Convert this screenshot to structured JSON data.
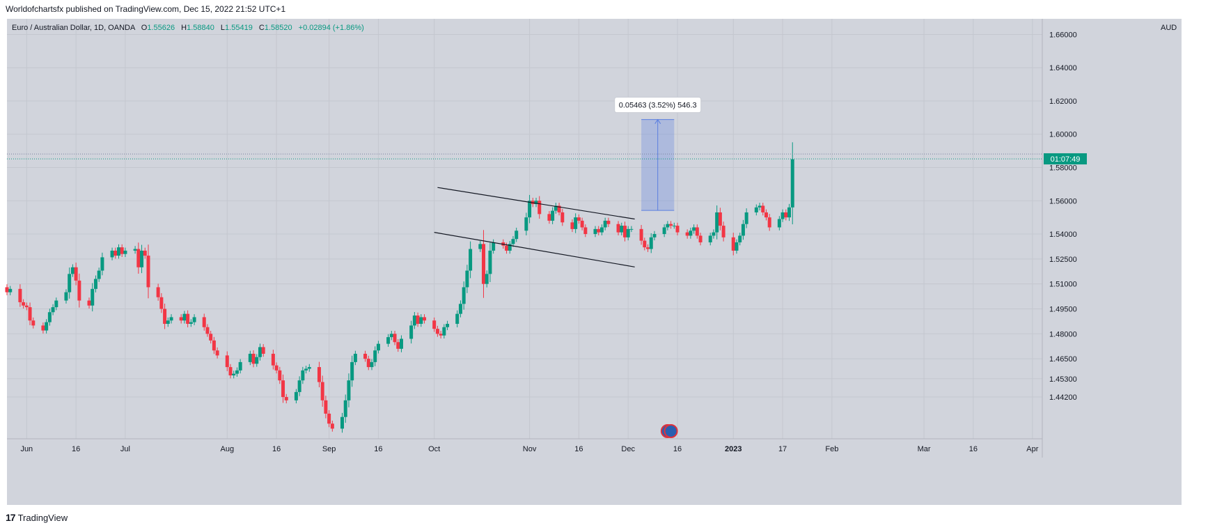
{
  "header": {
    "published_text": "Worldofchartsfx published on TradingView.com, Dec 15, 2022 21:52 UTC+1"
  },
  "legend": {
    "symbol": "Euro / Australian Dollar, 1D, OANDA",
    "open_label": "O",
    "open": "1.55626",
    "high_label": "H",
    "high": "1.58840",
    "low_label": "L",
    "low": "1.55419",
    "close_label": "C",
    "close": "1.58520",
    "change": "+0.02894 (+1.86%)"
  },
  "price_axis": {
    "currency": "AUD",
    "countdown": "01:07:49"
  },
  "footer": {
    "brand": "TradingView",
    "brand_icon": "tradingview-logo-icon"
  },
  "measure": {
    "label": "0.05463 (3.52%) 546.3"
  },
  "colors": {
    "up": "#089981",
    "down": "#f23645",
    "background": "#d1d4dc",
    "grid": "#c4c7cf",
    "measure": "#5b7fe0",
    "text": "#131722"
  },
  "chart_data": {
    "type": "candlestick",
    "title": "Euro / Australian Dollar, 1D, OANDA",
    "ylim": [
      1.4169,
      1.6694
    ],
    "y_ticks": [
      "1.66000",
      "1.64000",
      "1.62000",
      "1.60000",
      "1.58000",
      "1.56000",
      "1.54000",
      "1.52500",
      "1.51000",
      "1.49500",
      "1.48000",
      "1.46500",
      "1.45300",
      "1.44200"
    ],
    "x_ticks": [
      {
        "label": "Jun",
        "date": "2022-06-01"
      },
      {
        "label": "16",
        "date": "2022-06-16"
      },
      {
        "label": "Jul",
        "date": "2022-07-01"
      },
      {
        "label": "Aug",
        "date": "2022-08-01"
      },
      {
        "label": "16",
        "date": "2022-08-16"
      },
      {
        "label": "Sep",
        "date": "2022-09-01"
      },
      {
        "label": "16",
        "date": "2022-09-16"
      },
      {
        "label": "Oct",
        "date": "2022-10-03"
      },
      {
        "label": "Nov",
        "date": "2022-11-01"
      },
      {
        "label": "16",
        "date": "2022-11-16"
      },
      {
        "label": "Dec",
        "date": "2022-12-01"
      },
      {
        "label": "16",
        "date": "2022-12-16"
      },
      {
        "label": "2023",
        "date": "2023-01-02"
      },
      {
        "label": "17",
        "date": "2023-01-17"
      },
      {
        "label": "Feb",
        "date": "2023-02-01"
      },
      {
        "label": "Mar",
        "date": "2023-03-01"
      },
      {
        "label": "16",
        "date": "2023-03-16"
      },
      {
        "label": "Apr",
        "date": "2023-04-03"
      }
    ],
    "x_range": [
      "2022-05-26",
      "2023-04-06"
    ],
    "close_series": [
      1.505,
      1.507,
      1.499,
      1.497,
      1.496,
      1.488,
      1.485,
      1.482,
      1.487,
      1.493,
      1.496,
      1.5,
      1.505,
      1.516,
      1.52,
      1.512,
      1.5,
      1.497,
      1.507,
      1.513,
      1.518,
      1.526,
      1.53,
      1.527,
      1.532,
      1.528,
      1.53,
      1.531,
      1.52,
      1.53,
      1.527,
      1.508,
      1.502,
      1.495,
      1.486,
      1.488,
      1.49,
      1.488,
      1.492,
      1.486,
      1.487,
      1.49,
      1.484,
      1.48,
      1.476,
      1.47,
      1.467,
      1.46,
      1.455,
      1.456,
      1.458,
      1.463,
      1.468,
      1.462,
      1.466,
      1.472,
      1.468,
      1.461,
      1.458,
      1.452,
      1.442,
      1.44,
      1.445,
      1.452,
      1.458,
      1.459,
      1.46,
      1.451,
      1.44,
      1.432,
      1.426,
      1.423,
      1.43,
      1.44,
      1.452,
      1.463,
      1.468,
      1.465,
      1.46,
      1.463,
      1.47,
      1.474,
      1.478,
      1.48,
      1.475,
      1.471,
      1.477,
      1.485,
      1.491,
      1.486,
      1.49,
      1.488,
      1.483,
      1.48,
      1.479,
      1.484,
      1.486,
      1.492,
      1.498,
      1.508,
      1.518,
      1.531,
      1.534,
      1.51,
      1.516,
      1.53,
      1.535,
      1.533,
      1.53,
      1.534,
      1.537,
      1.542,
      1.55,
      1.56,
      1.558,
      1.56,
      1.552,
      1.548,
      1.554,
      1.557,
      1.553,
      1.547,
      1.543,
      1.55,
      1.548,
      1.544,
      1.54,
      1.543,
      1.541,
      1.544,
      1.548,
      1.546,
      1.541,
      1.545,
      1.538,
      1.543,
      1.543,
      1.536,
      1.532,
      1.531,
      1.538,
      1.54,
      1.544,
      1.546,
      1.545,
      1.545,
      1.541,
      1.539,
      1.542,
      1.544,
      1.539,
      1.535,
      1.539,
      1.541,
      1.553,
      1.545,
      1.538,
      1.53,
      1.535,
      1.539,
      1.546,
      1.553,
      1.556,
      1.557,
      1.553,
      1.55,
      1.544,
      1.549,
      1.553,
      1.55,
      1.556,
      1.585
    ],
    "close_series_note_start": "2022-05-26",
    "trendlines": [
      {
        "from": [
          "2022-10-04",
          1.568
        ],
        "to": [
          "2022-12-03",
          1.549
        ]
      },
      {
        "from": [
          "2022-10-03",
          1.541
        ],
        "to": [
          "2022-12-03",
          1.5202
        ]
      }
    ],
    "measure_box": {
      "from_date": "2022-12-05",
      "to_date": "2022-12-15",
      "low": 1.55419,
      "high": 1.60882,
      "label": "0.05463 (3.52%) 546.3"
    },
    "current_price": 1.5852
  }
}
